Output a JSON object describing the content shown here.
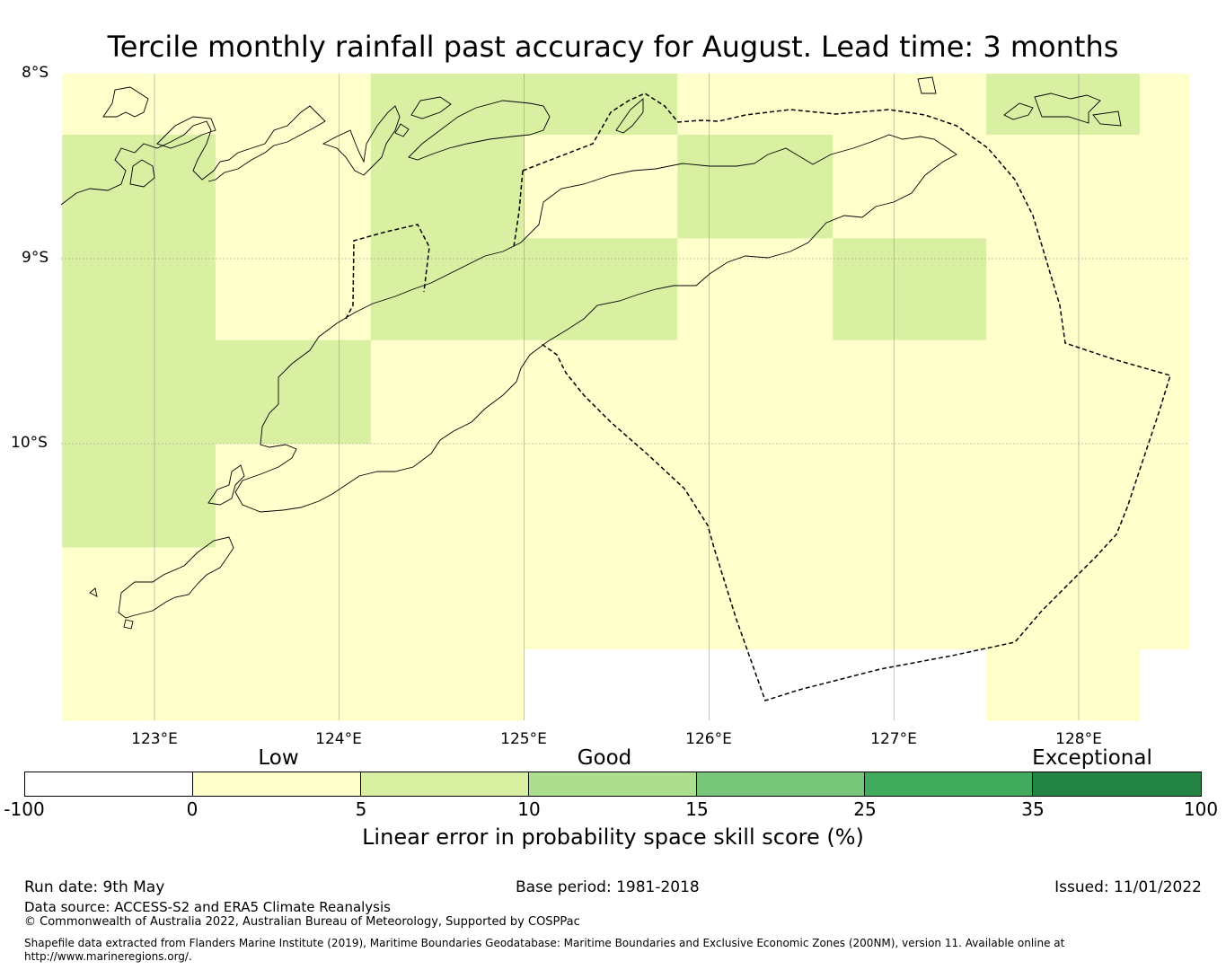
{
  "title": "Tercile monthly rainfall past accuracy for August. Lead time: 3 months",
  "map": {
    "lat_labels": [
      "8°S",
      "9°S",
      "10°S"
    ],
    "lon_labels": [
      "123°E",
      "124°E",
      "125°E",
      "126°E",
      "127°E",
      "128°E"
    ],
    "colors": {
      "white": "#ffffff",
      "pale_yellow": "#ffffcc",
      "light_green": "#d9f0a3",
      "land_outline": "#000000",
      "gridline": "#888888"
    },
    "grid_cells": [
      {
        "lon": [
          122.5,
          123.33
        ],
        "lat": [
          -8.33,
          -8.0
        ],
        "class": "0-5"
      },
      {
        "lon": [
          122.5,
          123.33
        ],
        "lat": [
          -10.56,
          -8.33
        ],
        "class": "5-10"
      },
      {
        "lon": [
          122.5,
          123.33
        ],
        "lat": [
          -11.5,
          -10.56
        ],
        "class": "0-5"
      },
      {
        "lon": [
          123.33,
          124.17
        ],
        "lat": [
          -9.44,
          -8.0
        ],
        "class": "0-5"
      },
      {
        "lon": [
          123.33,
          124.17
        ],
        "lat": [
          -10.0,
          -9.44
        ],
        "class": "5-10"
      },
      {
        "lon": [
          123.33,
          124.17
        ],
        "lat": [
          -11.5,
          -10.0
        ],
        "class": "0-5"
      },
      {
        "lon": [
          124.17,
          125.0
        ],
        "lat": [
          -9.44,
          -8.0
        ],
        "class": "5-10"
      },
      {
        "lon": [
          124.17,
          125.0
        ],
        "lat": [
          -11.5,
          -9.44
        ],
        "class": "0-5"
      },
      {
        "lon": [
          125.0,
          125.83
        ],
        "lat": [
          -8.33,
          -8.0
        ],
        "class": "5-10"
      },
      {
        "lon": [
          125.0,
          125.83
        ],
        "lat": [
          -8.89,
          -8.33
        ],
        "class": "0-5"
      },
      {
        "lon": [
          125.0,
          125.83
        ],
        "lat": [
          -9.44,
          -8.89
        ],
        "class": "5-10"
      },
      {
        "lon": [
          125.0,
          125.83
        ],
        "lat": [
          -11.11,
          -9.44
        ],
        "class": "0-5"
      },
      {
        "lon": [
          125.83,
          126.67
        ],
        "lat": [
          -8.33,
          -8.0
        ],
        "class": "0-5"
      },
      {
        "lon": [
          125.83,
          126.67
        ],
        "lat": [
          -8.89,
          -8.33
        ],
        "class": "5-10"
      },
      {
        "lon": [
          125.83,
          126.67
        ],
        "lat": [
          -11.11,
          -8.89
        ],
        "class": "0-5"
      },
      {
        "lon": [
          126.67,
          127.5
        ],
        "lat": [
          -8.89,
          -8.0
        ],
        "class": "0-5"
      },
      {
        "lon": [
          126.67,
          127.5
        ],
        "lat": [
          -9.44,
          -8.89
        ],
        "class": "5-10"
      },
      {
        "lon": [
          126.67,
          127.5
        ],
        "lat": [
          -11.11,
          -9.44
        ],
        "class": "0-5"
      },
      {
        "lon": [
          127.5,
          128.33
        ],
        "lat": [
          -8.33,
          -8.0
        ],
        "class": "5-10"
      },
      {
        "lon": [
          127.5,
          128.33
        ],
        "lat": [
          -11.5,
          -8.33
        ],
        "class": "0-5"
      },
      {
        "lon": [
          128.33,
          128.6
        ],
        "lat": [
          -11.11,
          -8.0
        ],
        "class": "0-5"
      }
    ]
  },
  "colorbar": {
    "categories": [
      "Low",
      "Good",
      "Exceptional"
    ],
    "ticks": [
      "-100",
      "0",
      "5",
      "10",
      "15",
      "25",
      "35",
      "100"
    ],
    "colors": [
      "#ffffff",
      "#ffffcc",
      "#d9f0a3",
      "#addd8e",
      "#78c679",
      "#41ab5d",
      "#238443"
    ],
    "label": "Linear error in probability space skill score (%)"
  },
  "footer": {
    "run_date": "Run date: 9th May",
    "base_period": "Base period: 1981-2018",
    "issued": "Issued: 11/01/2022",
    "data_source": "Data source: ACCESS-S2 and ERA5 Climate Reanalysis",
    "copyright": "© Commonwealth of Australia 2022, Australian Bureau of Meteorology, Supported by COSPPac",
    "shapefile": "Shapefile data extracted from Flanders Marine Institute (2019), Maritime Boundaries Geodatabase: Maritime Boundaries and Exclusive Economic Zones (200NM), version 11. Available online at http://www.marineregions.org/."
  }
}
